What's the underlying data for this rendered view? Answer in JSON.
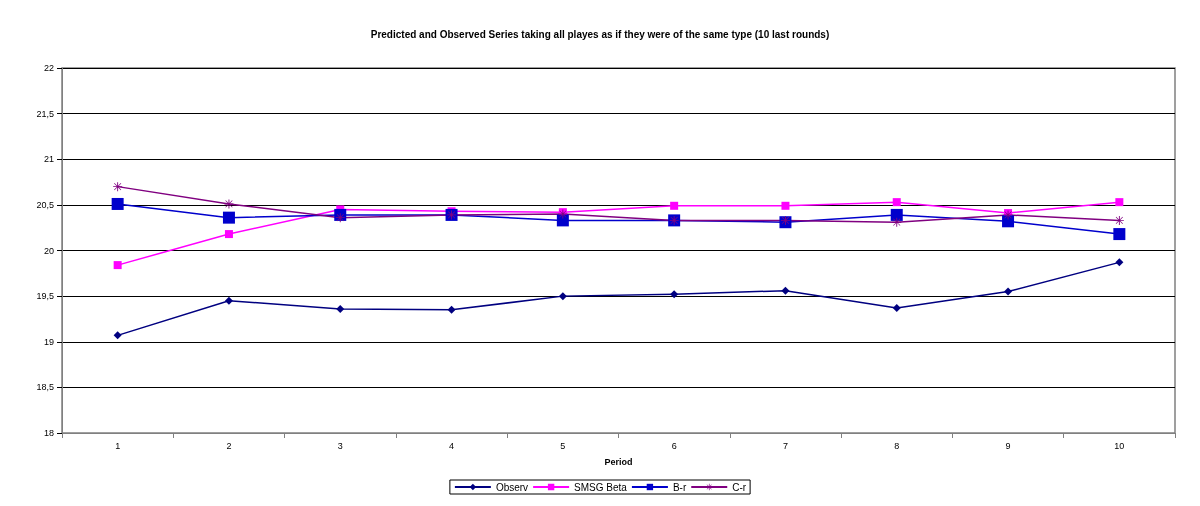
{
  "chart_data": {
    "type": "line",
    "title": "Predicted and Observed Series taking all playes as if they were of the same type (10 last rounds)",
    "xlabel": "Period",
    "categories": [
      "1",
      "2",
      "3",
      "4",
      "5",
      "6",
      "7",
      "8",
      "9",
      "10"
    ],
    "series": [
      {
        "name": "Observ",
        "color": "#000080",
        "marker": "diamond",
        "values": [
          19.07,
          19.45,
          19.36,
          19.35,
          19.5,
          19.52,
          19.56,
          19.37,
          19.55,
          19.87
        ]
      },
      {
        "name": "SMSG Beta",
        "color": "#ff00ff",
        "marker": "square",
        "values": [
          19.84,
          20.18,
          20.45,
          20.43,
          20.42,
          20.49,
          20.49,
          20.53,
          20.41,
          20.53
        ]
      },
      {
        "name": "B-r",
        "color": "#0000cc",
        "marker": "square",
        "values": [
          20.51,
          20.36,
          20.39,
          20.39,
          20.33,
          20.33,
          20.31,
          20.39,
          20.32,
          20.18
        ]
      },
      {
        "name": "C-r",
        "color": "#800080",
        "marker": "star",
        "values": [
          20.7,
          20.51,
          20.36,
          20.39,
          20.4,
          20.33,
          20.33,
          20.31,
          20.39,
          20.33
        ]
      }
    ],
    "ylim": [
      18,
      22
    ],
    "yticks": [
      18,
      {
        "value": 18.5,
        "label": "18,5"
      },
      19,
      {
        "value": 19.5,
        "label": "19,5"
      },
      20,
      {
        "value": 20.5,
        "label": "20,5"
      },
      21,
      {
        "value": 21.5,
        "label": "21,5"
      },
      22
    ],
    "grid": "y",
    "legend": "bottom"
  }
}
